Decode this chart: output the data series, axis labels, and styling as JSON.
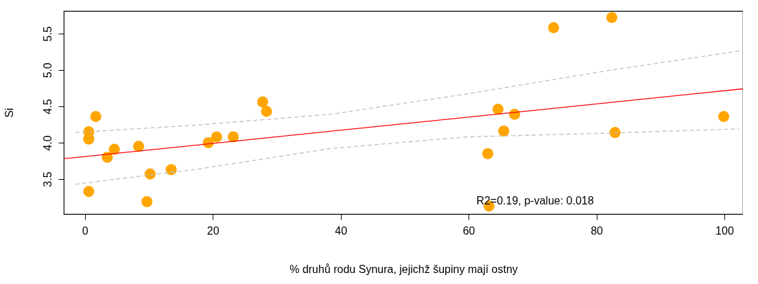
{
  "chart_data": {
    "type": "scatter",
    "xlabel": "% druhů rodu Synura, jejichž šupiny mají ostny",
    "ylabel": "Si",
    "xlim": [
      -3.3,
      102.9
    ],
    "ylim": [
      3.02,
      5.81
    ],
    "xticks": [
      0,
      20,
      40,
      60,
      80,
      100
    ],
    "yticks": [
      {
        "value": 3.5,
        "label": "3.5"
      },
      {
        "value": 4.0,
        "label": "4.0"
      },
      {
        "value": 4.5,
        "label": "4.5"
      },
      {
        "value": 5.0,
        "label": "5.0"
      },
      {
        "value": 5.5,
        "label": "5.5"
      }
    ],
    "grid": false,
    "annotations": [
      "R2=0.19, p-value: 0.018"
    ],
    "series": [
      {
        "marker": "circle",
        "color": "#ffa500",
        "x": [
          0.6,
          0.6,
          0.6,
          1.7,
          3.5,
          4.6,
          8.4,
          10.2,
          9.7,
          13.5,
          19.3,
          20.6,
          23.2,
          27.8,
          28.4,
          63.0,
          63.2,
          64.6,
          65.5,
          67.2,
          73.3,
          82.4,
          82.9,
          99.9
        ],
        "values": [
          4.15,
          4.05,
          3.33,
          4.36,
          3.8,
          3.91,
          3.95,
          3.57,
          3.19,
          3.63,
          4.0,
          4.08,
          4.08,
          4.56,
          4.43,
          3.85,
          3.13,
          4.46,
          4.16,
          4.39,
          5.58,
          5.72,
          4.14,
          4.36
        ]
      },
      {
        "type": "line",
        "color": "#ff0000",
        "line_style": "solid",
        "x": [
          -3.3,
          102.9
        ],
        "values": [
          3.78,
          4.74
        ]
      },
      {
        "type": "line",
        "color": "#bebebe",
        "line_style": "dashed",
        "x": [
          -1.5,
          17.1,
          38.4,
          59.7,
          81.0,
          102.3
        ],
        "values": [
          4.14,
          4.24,
          4.39,
          4.67,
          4.98,
          5.26
        ]
      },
      {
        "type": "line",
        "color": "#bebebe",
        "line_style": "dashed",
        "x": [
          -1.5,
          17.1,
          38.4,
          59.7,
          81.0,
          102.3
        ],
        "values": [
          3.43,
          3.63,
          3.92,
          4.08,
          4.13,
          4.19
        ]
      }
    ]
  }
}
